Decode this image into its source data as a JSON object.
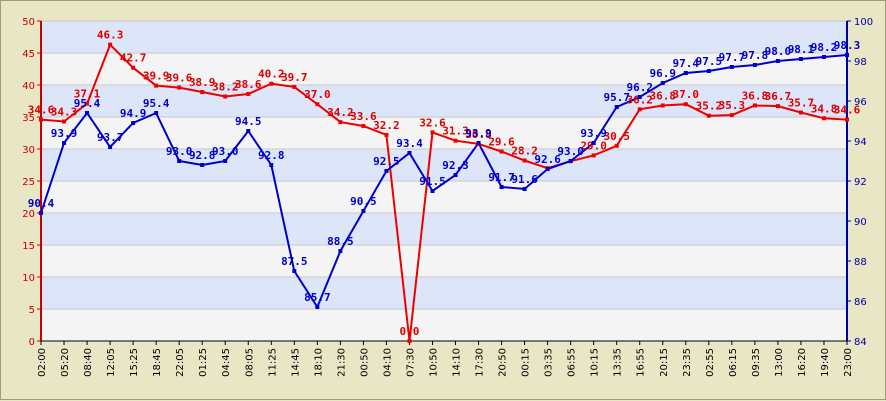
{
  "chart_data": {
    "type": "line",
    "title": "",
    "x": [
      "02:00",
      "05:20",
      "08:40",
      "12:05",
      "15:25",
      "18:45",
      "22:05",
      "01:25",
      "04:45",
      "08:05",
      "11:25",
      "14:45",
      "18:10",
      "21:30",
      "00:50",
      "04:10",
      "07:30",
      "10:50",
      "14:10",
      "17:30",
      "20:50",
      "00:15",
      "03:35",
      "06:55",
      "10:15",
      "13:35",
      "16:55",
      "20:15",
      "23:35",
      "02:55",
      "06:15",
      "09:35",
      "13:00",
      "16:20",
      "19:40",
      "23:00"
    ],
    "y_left": {
      "range": [
        0,
        50
      ],
      "ticks": [
        "0",
        "5",
        "10",
        "15",
        "20",
        "25",
        "30",
        "35",
        "40",
        "45",
        "50"
      ],
      "color": "#cc0000"
    },
    "y_right": {
      "range": [
        84,
        100
      ],
      "ticks": [
        "84",
        "86",
        "88",
        "90",
        "92",
        "94",
        "96",
        "98",
        "100"
      ],
      "color": "#0000aa"
    },
    "grid": true,
    "series": [
      {
        "axis": "left",
        "color": "#ee0000",
        "values": [
          34.6,
          34.3,
          37.1,
          46.3,
          42.7,
          39.9,
          39.6,
          38.9,
          38.2,
          38.6,
          40.2,
          39.7,
          37.0,
          34.2,
          33.6,
          32.2,
          0.0,
          32.6,
          31.3,
          30.8,
          29.6,
          28.2,
          27.0,
          28.1,
          29.0,
          30.5,
          36.2,
          36.8,
          37.0,
          35.2,
          35.3,
          36.8,
          36.7,
          35.7,
          34.8,
          34.6
        ],
        "labels": [
          "34.6",
          "34.3",
          "37.1",
          "46.3",
          "42.7",
          "39.9",
          "39.6",
          "38.9",
          "38.2",
          "38.6",
          "40.2",
          "39.7",
          "37.0",
          "34.2",
          "33.6",
          "32.2",
          "0.0",
          "32.6",
          "31.3",
          "30.8",
          "29.6",
          "28.2",
          "",
          "",
          "29.0",
          "30.5",
          "36.2",
          "36.8",
          "37.0",
          "35.2",
          "35.3",
          "36.8",
          "36.7",
          "35.7",
          "34.8",
          "34.6"
        ]
      },
      {
        "axis": "right",
        "color": "#0000cc",
        "values": [
          90.4,
          93.9,
          95.4,
          93.7,
          94.9,
          95.4,
          93.0,
          92.8,
          93.0,
          94.5,
          92.8,
          87.5,
          85.7,
          88.5,
          90.5,
          92.5,
          93.4,
          91.5,
          92.3,
          93.9,
          91.7,
          91.6,
          92.6,
          93.0,
          93.9,
          95.7,
          96.2,
          96.9,
          97.4,
          97.5,
          97.7,
          97.8,
          98.0,
          98.1,
          98.2,
          98.3
        ],
        "labels": [
          "90.4",
          "93.9",
          "95.4",
          "93.7",
          "94.9",
          "95.4",
          "93.0",
          "92.8",
          "93.0",
          "94.5",
          "92.8",
          "87.5",
          "85.7",
          "88.5",
          "90.5",
          "92.5",
          "93.4",
          "91.5",
          "92.3",
          "93.9",
          "91.7",
          "91.6",
          "92.6",
          "93.0",
          "93.9",
          "95.7",
          "96.2",
          "96.9",
          "97.4",
          "97.5",
          "97.7",
          "97.8",
          "98.0",
          "98.1",
          "98.2",
          "98.3"
        ]
      }
    ]
  }
}
